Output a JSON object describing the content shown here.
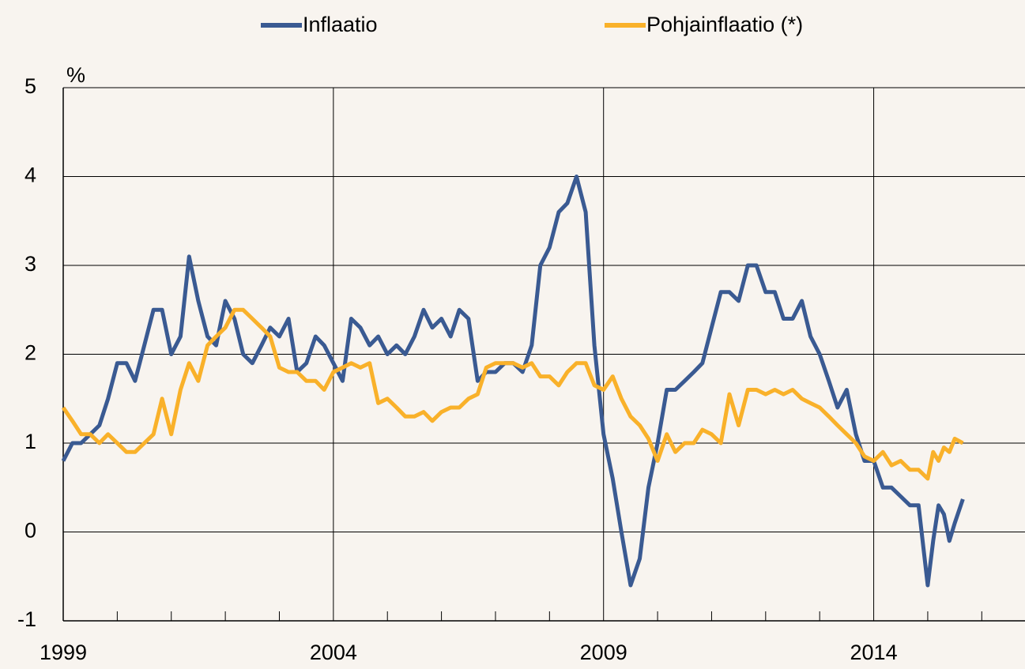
{
  "chart_data": {
    "type": "line",
    "series": [
      {
        "name": "Inflaatio",
        "color": "#3a5a92",
        "values": [
          0.8,
          1.0,
          1.0,
          1.1,
          1.2,
          1.5,
          1.9,
          1.9,
          1.7,
          2.1,
          2.5,
          2.5,
          2.0,
          2.2,
          3.1,
          2.6,
          2.2,
          2.1,
          2.6,
          2.4,
          2.0,
          1.9,
          2.1,
          2.3,
          2.2,
          2.4,
          1.8,
          1.9,
          2.2,
          2.1,
          1.9,
          1.7,
          2.4,
          2.3,
          2.1,
          2.2,
          2.0,
          2.1,
          2.0,
          2.2,
          2.5,
          2.3,
          2.4,
          2.2,
          2.5,
          2.4,
          1.7,
          1.8,
          1.8,
          1.9,
          1.9,
          1.8,
          2.1,
          3.0,
          3.2,
          3.6,
          3.7,
          4.0,
          3.6,
          2.1,
          1.1,
          0.6,
          0.0,
          -0.6,
          -0.3,
          0.5,
          1.0,
          1.6,
          1.6,
          1.7,
          1.8,
          1.9,
          2.3,
          2.7,
          2.7,
          2.6,
          3.0,
          3.0,
          2.7,
          2.7,
          2.4,
          2.4,
          2.6,
          2.2,
          2.0,
          1.7,
          1.4,
          1.6,
          1.1,
          0.8,
          0.8,
          0.5,
          0.5,
          0.4,
          0.3,
          0.3,
          -0.6,
          -0.1,
          0.3,
          0.2,
          -0.1,
          0.1,
          0.37
        ]
      },
      {
        "name": "Pohjainflaatio (*)",
        "color": "#f9b12a",
        "values": [
          1.4,
          1.25,
          1.1,
          1.1,
          1.0,
          1.1,
          1.0,
          0.9,
          0.9,
          1.0,
          1.1,
          1.5,
          1.1,
          1.6,
          1.9,
          1.7,
          2.1,
          2.2,
          2.3,
          2.5,
          2.5,
          2.4,
          2.3,
          2.2,
          1.85,
          1.8,
          1.8,
          1.7,
          1.7,
          1.6,
          1.8,
          1.85,
          1.9,
          1.85,
          1.9,
          1.45,
          1.5,
          1.4,
          1.3,
          1.3,
          1.35,
          1.25,
          1.35,
          1.4,
          1.4,
          1.5,
          1.55,
          1.85,
          1.9,
          1.9,
          1.9,
          1.85,
          1.9,
          1.75,
          1.75,
          1.65,
          1.8,
          1.9,
          1.9,
          1.65,
          1.6,
          1.75,
          1.5,
          1.3,
          1.2,
          1.05,
          0.8,
          1.1,
          0.9,
          1.0,
          1.0,
          1.15,
          1.1,
          1.0,
          1.55,
          1.2,
          1.6,
          1.6,
          1.55,
          1.6,
          1.55,
          1.6,
          1.5,
          1.45,
          1.4,
          1.3,
          1.2,
          1.1,
          1.0,
          0.85,
          0.8,
          0.9,
          0.75,
          0.8,
          0.7,
          0.7,
          0.6,
          0.9,
          0.8,
          0.95,
          0.9,
          1.05,
          1.0
        ]
      }
    ],
    "x": [
      1999,
      1999.17,
      1999.33,
      1999.5,
      1999.67,
      1999.83,
      2000,
      2000.17,
      2000.33,
      2000.5,
      2000.67,
      2000.83,
      2001,
      2001.17,
      2001.33,
      2001.5,
      2001.67,
      2001.83,
      2002,
      2002.17,
      2002.33,
      2002.5,
      2002.67,
      2002.83,
      2003,
      2003.17,
      2003.33,
      2003.5,
      2003.67,
      2003.83,
      2004,
      2004.17,
      2004.33,
      2004.5,
      2004.67,
      2004.83,
      2005,
      2005.17,
      2005.33,
      2005.5,
      2005.67,
      2005.83,
      2006,
      2006.17,
      2006.33,
      2006.5,
      2006.67,
      2006.83,
      2007,
      2007.17,
      2007.33,
      2007.5,
      2007.67,
      2007.83,
      2008,
      2008.17,
      2008.33,
      2008.5,
      2008.67,
      2008.83,
      2009,
      2009.17,
      2009.33,
      2009.5,
      2009.67,
      2009.83,
      2010,
      2010.17,
      2010.33,
      2010.5,
      2010.67,
      2010.83,
      2011,
      2011.17,
      2011.33,
      2011.5,
      2011.67,
      2011.83,
      2012,
      2012.17,
      2012.33,
      2012.5,
      2012.67,
      2012.83,
      2013,
      2013.17,
      2013.33,
      2013.5,
      2013.67,
      2013.83,
      2014,
      2014.17,
      2014.33,
      2014.5,
      2014.67,
      2014.83,
      2015,
      2015.1,
      2015.2,
      2015.3,
      2015.4,
      2015.5,
      2015.65
    ],
    "xlim": [
      1999,
      2016.8
    ],
    "xticks": [
      1999,
      2004,
      2009,
      2014
    ],
    "xminor_ticks": [
      2000,
      2001,
      2002,
      2003,
      2005,
      2006,
      2007,
      2008,
      2010,
      2011,
      2012,
      2013,
      2015,
      2016
    ],
    "ylim": [
      -1,
      5
    ],
    "yticks": [
      -1,
      0,
      1,
      2,
      3,
      4,
      5
    ],
    "y_label": "%",
    "grid": true,
    "legend": "top"
  }
}
